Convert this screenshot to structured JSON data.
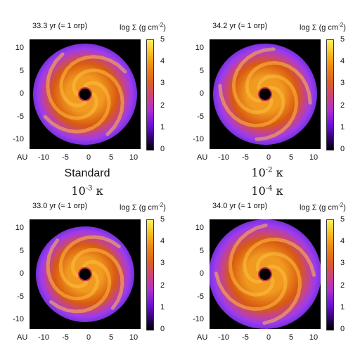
{
  "panels": [
    {
      "time": "33.3 yr (≈ 1 orp)",
      "colorbar_label_base": "log Σ (g cm",
      "colorbar_label_exp": "-2",
      "colorbar_label_close": ")",
      "variant": 0
    },
    {
      "time": "34.2 yr (≈ 1 orp)",
      "colorbar_label_base": "log Σ (g cm",
      "colorbar_label_exp": "-2",
      "colorbar_label_close": ")",
      "variant": 1
    },
    {
      "time": "33.0 yr (≈ 1 orp)",
      "colorbar_label_base": "log Σ (g cm",
      "colorbar_label_exp": "-2",
      "colorbar_label_close": ")",
      "variant": 2
    },
    {
      "time": "34.0 yr (≈ 1 orp)",
      "colorbar_label_base": "log Σ (g cm",
      "colorbar_label_exp": "-2",
      "colorbar_label_close": ")",
      "variant": 3
    }
  ],
  "axes": {
    "x_ticks": [
      "-10",
      "-5",
      "0",
      "5",
      "10"
    ],
    "y_ticks": [
      "10",
      "5",
      "0",
      "-5",
      "-10"
    ],
    "x_range": [
      -12,
      12
    ],
    "y_range": [
      -12,
      12
    ],
    "unit": "AU"
  },
  "colorbar": {
    "ticks": [
      "5",
      "4",
      "3",
      "2",
      "1",
      "0"
    ],
    "range": [
      0,
      5
    ]
  },
  "labels": {
    "standard": "Standard",
    "top_right_base": "10",
    "top_right_exp": "-2",
    "top_right_kappa": " κ",
    "bottom_left_base": "10",
    "bottom_left_exp": "-3",
    "bottom_left_kappa": " κ",
    "bottom_right_base": "10",
    "bottom_right_exp": "-4",
    "bottom_right_kappa": " κ"
  },
  "colors": {
    "background": "#000000",
    "outer_disk": "#9a3cf0",
    "mid_disk": "#d85a10",
    "inner_disk": "#f09a20",
    "arm": "#ffc040",
    "hole": "#000000",
    "hole_rim": "#c03050"
  }
}
